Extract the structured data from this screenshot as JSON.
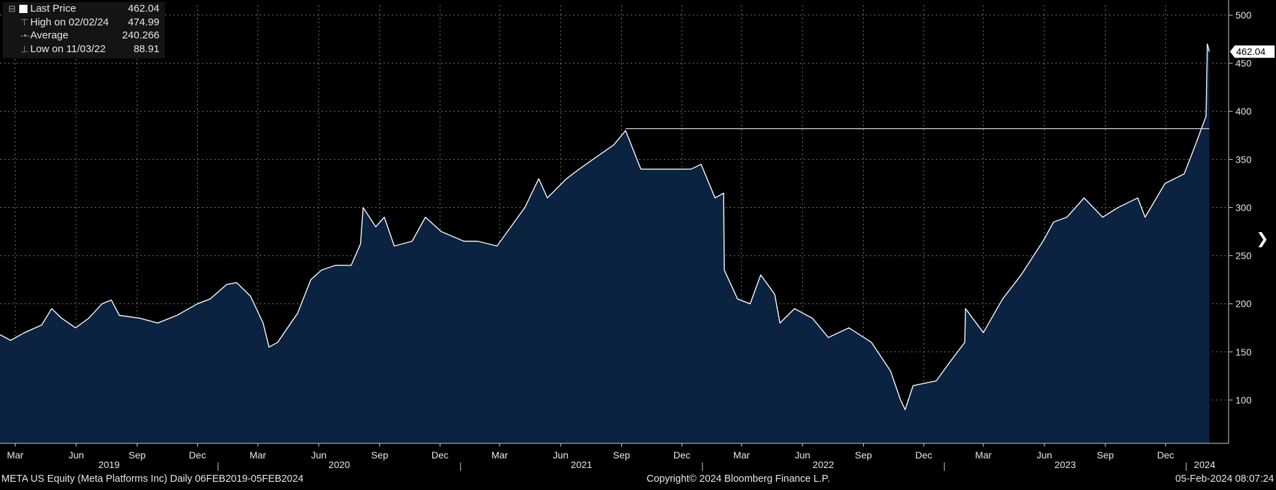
{
  "chart_data": {
    "type": "area",
    "ticker": "META US Equity (Meta Platforms Inc)",
    "frequency": "Daily",
    "range_label": "06FEB2019-05FEB2024",
    "x_month_ticks": [
      "Mar",
      "Jun",
      "Sep",
      "Dec",
      "Mar",
      "Jun",
      "Sep",
      "Dec",
      "Mar",
      "Jun",
      "Sep",
      "Dec",
      "Mar",
      "Jun",
      "Sep",
      "Dec",
      "Mar",
      "Jun",
      "Sep",
      "Dec"
    ],
    "x_year_ticks": [
      "2019",
      "2020",
      "2021",
      "2022",
      "2023",
      "2024"
    ],
    "y_ticks": [
      "100",
      "150",
      "200",
      "250",
      "300",
      "350",
      "400",
      "450",
      "500"
    ],
    "ylim": [
      55,
      510
    ],
    "grid": true,
    "last_price_tag": "462.04",
    "high_line_value": 382,
    "x": [
      "2019-02-06",
      "2019-02-22",
      "2019-03-15",
      "2019-04-10",
      "2019-04-25",
      "2019-05-10",
      "2019-05-31",
      "2019-06-20",
      "2019-07-10",
      "2019-07-24",
      "2019-08-05",
      "2019-09-05",
      "2019-10-02",
      "2019-10-31",
      "2019-12-01",
      "2019-12-20",
      "2020-01-14",
      "2020-01-29",
      "2020-02-19",
      "2020-03-09",
      "2020-03-18",
      "2020-03-31",
      "2020-04-15",
      "2020-04-30",
      "2020-05-20",
      "2020-06-05",
      "2020-06-26",
      "2020-07-20",
      "2020-08-03",
      "2020-08-07",
      "2020-08-26",
      "2020-09-08",
      "2020-09-23",
      "2020-10-20",
      "2020-11-09",
      "2020-12-03",
      "2021-01-06",
      "2021-01-27",
      "2021-02-25",
      "2021-03-18",
      "2021-04-08",
      "2021-04-29",
      "2021-05-12",
      "2021-06-10",
      "2021-06-29",
      "2021-07-30",
      "2021-08-20",
      "2021-09-07",
      "2021-09-30",
      "2021-10-25",
      "2021-11-15",
      "2021-12-15",
      "2021-12-30",
      "2022-01-20",
      "2022-02-02",
      "2022-02-03",
      "2022-02-23",
      "2022-03-14",
      "2022-03-30",
      "2022-04-20",
      "2022-04-28",
      "2022-05-20",
      "2022-06-16",
      "2022-07-10",
      "2022-08-10",
      "2022-09-13",
      "2022-10-12",
      "2022-10-27",
      "2022-11-03",
      "2022-11-15",
      "2022-12-20",
      "2023-01-10",
      "2023-02-01",
      "2023-02-02",
      "2023-03-01",
      "2023-03-30",
      "2023-04-27",
      "2023-05-30",
      "2023-06-15",
      "2023-07-05",
      "2023-07-31",
      "2023-08-28",
      "2023-09-20",
      "2023-10-20",
      "2023-10-31",
      "2023-11-30",
      "2023-12-29",
      "2024-01-15",
      "2024-01-31",
      "2024-02-02",
      "2024-02-05"
    ],
    "values": [
      168,
      162,
      170,
      178,
      195,
      185,
      175,
      185,
      200,
      204,
      188,
      185,
      180,
      188,
      200,
      205,
      220,
      222,
      208,
      180,
      155,
      160,
      175,
      190,
      225,
      235,
      240,
      240,
      262,
      300,
      280,
      290,
      260,
      265,
      290,
      275,
      265,
      265,
      260,
      280,
      300,
      330,
      310,
      330,
      340,
      355,
      365,
      380,
      340,
      340,
      340,
      340,
      345,
      310,
      315,
      235,
      205,
      200,
      230,
      210,
      180,
      195,
      185,
      165,
      175,
      160,
      130,
      100,
      90,
      115,
      120,
      140,
      160,
      195,
      170,
      205,
      230,
      265,
      285,
      290,
      310,
      290,
      300,
      310,
      290,
      325,
      335,
      365,
      395,
      470,
      462
    ]
  },
  "legend": {
    "last_price_label": "Last Price",
    "last_price_value": "462.04",
    "high_label": "High on 02/02/24",
    "high_value": "474.99",
    "average_label": "Average",
    "average_value": "240.266",
    "low_label": "Low on 11/03/22",
    "low_value": "88.91"
  },
  "footer": {
    "left": "META US Equity (Meta Platforms Inc)  Daily 06FEB2019-05FEB2024",
    "center": "Copyright© 2024 Bloomberg Finance L.P.",
    "right": "05-Feb-2024 08:07:24"
  },
  "colors": {
    "area": "#0b2240",
    "line": "#ffffff",
    "grid": "#7a7a7a",
    "background": "#000000"
  },
  "icons": {
    "next": "chevron-right-icon"
  }
}
